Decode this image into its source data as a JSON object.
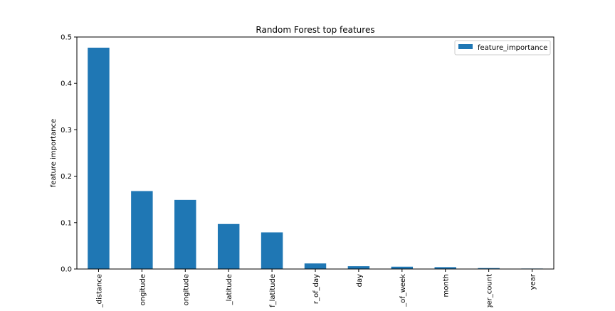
{
  "chart_data": {
    "type": "bar",
    "title": "Random Forest top features",
    "xlabel": "",
    "ylabel": "feature importance",
    "categories": [
      "_distance",
      "ongitude",
      "ongitude",
      "_latitude",
      "f_latitude",
      "r_of_day",
      "day",
      "_of_week",
      "month",
      "ger_count",
      "year"
    ],
    "series": [
      {
        "name": "feature_importance",
        "color": "#1f77b4",
        "values": [
          0.477,
          0.168,
          0.149,
          0.097,
          0.079,
          0.012,
          0.006,
          0.005,
          0.004,
          0.002,
          0.001
        ]
      }
    ],
    "ylim": [
      0,
      0.5
    ],
    "yticks": [
      "0.0",
      "0.1",
      "0.2",
      "0.3",
      "0.4",
      "0.5"
    ],
    "grid": false,
    "legend_position": "top-right"
  }
}
